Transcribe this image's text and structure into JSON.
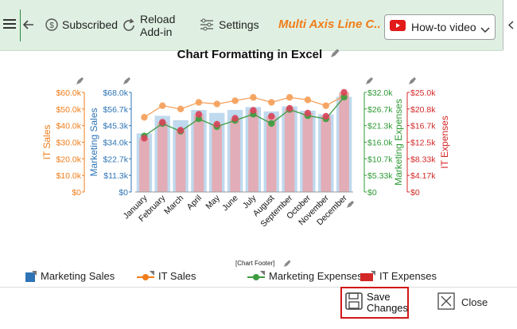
{
  "toolbar": {
    "subscribed_label": "Subscribed",
    "reload_label_1": "Reload",
    "reload_label_2": "Add-in",
    "settings_label": "Settings",
    "chart_name": "Multi Axis Line C...",
    "howto_label": "How-to video"
  },
  "footer": {
    "chart_footer": "[Chart Footer]",
    "save_label_1": "Save",
    "save_label_2": "Changes",
    "close_label": "Close"
  },
  "colors": {
    "marketing_sales": "#bfd9ee",
    "it_sales": "#f4a05a",
    "marketing_expenses": "#3e9c41",
    "it_expenses": "#d9445a",
    "accent": "#f07d1a"
  },
  "chart_data": {
    "type": "bar",
    "title": "Chart Formatting in Excel",
    "categories": [
      "January",
      "February",
      "March",
      "April",
      "May",
      "June",
      "July",
      "August",
      "September",
      "October",
      "November",
      "December"
    ],
    "series": [
      {
        "name": "Marketing Sales",
        "type": "bar",
        "axis": "marketing_sales",
        "values": [
          40000,
          52000,
          49000,
          56000,
          54000,
          56000,
          58000,
          55000,
          58500,
          55500,
          53000,
          65000
        ]
      },
      {
        "name": "IT Sales",
        "type": "line",
        "axis": "it_sales",
        "values": [
          45000,
          52000,
          50000,
          54000,
          53000,
          55000,
          57000,
          54000,
          57000,
          55500,
          52000,
          58000
        ]
      },
      {
        "name": "Marketing Expenses",
        "type": "line",
        "axis": "marketing_expenses",
        "values": [
          18000,
          22000,
          19500,
          23500,
          21000,
          23000,
          25000,
          22000,
          26500,
          24500,
          23500,
          30500
        ]
      },
      {
        "name": "IT Expenses",
        "type": "bar",
        "axis": "it_expenses",
        "values": [
          13500,
          17500,
          15500,
          19500,
          17000,
          18500,
          20500,
          19000,
          21000,
          19800,
          19000,
          25000
        ]
      }
    ],
    "axes": {
      "it_sales": {
        "label": "IT Sales",
        "ticks": [
          "$0",
          "$10.0k",
          "$20.0k",
          "$30.0k",
          "$40.0k",
          "$50.0k",
          "$60.0k"
        ],
        "max": 60000,
        "color": "#f07d1a"
      },
      "marketing_sales": {
        "label": "Marketing Sales",
        "ticks": [
          "$0",
          "$11.3k",
          "$22.7k",
          "$34.0k",
          "$45.3k",
          "$56.7k",
          "$68.0k"
        ],
        "max": 68000,
        "color": "#2e74b5"
      },
      "marketing_expenses": {
        "label": "Marketing Expenses",
        "ticks": [
          "$0",
          "$5.33k",
          "$10.7k",
          "$16.0k",
          "$21.3k",
          "$26.7k",
          "$32.0k"
        ],
        "max": 32000,
        "color": "#2e9a35"
      },
      "it_expenses": {
        "label": "IT Expenses",
        "ticks": [
          "$0",
          "$4.17k",
          "$8.33k",
          "$12.5k",
          "$16.7k",
          "$20.8k",
          "$25.0k"
        ],
        "max": 25000,
        "color": "#d42828"
      }
    },
    "legend_position": "bottom"
  }
}
